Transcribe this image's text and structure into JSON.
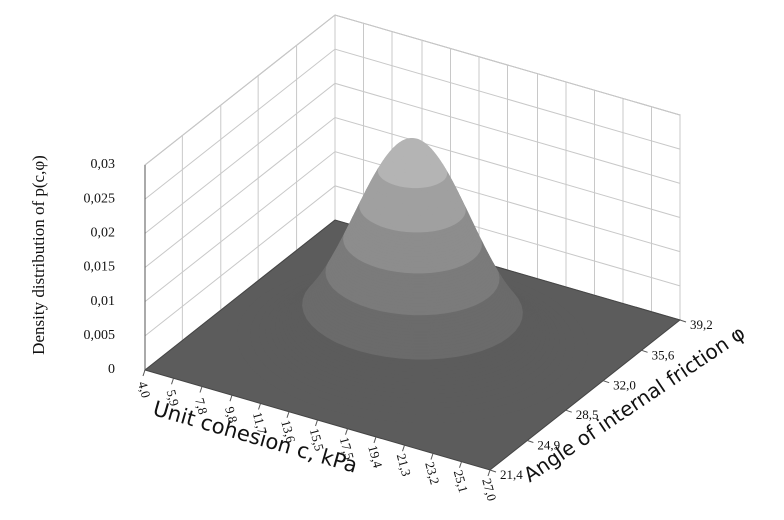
{
  "chart_data": {
    "type": "surface",
    "xlabel": "Unit cohesion c, kPa",
    "ylabel": "Angle of internal friction φ",
    "zlabel": "Density distribution of p(c,φ)",
    "xlim": [
      4.0,
      27.0
    ],
    "xticks": [
      {
        "value": 4.0,
        "label": "4,0"
      },
      {
        "value": 5.9,
        "label": "5,9"
      },
      {
        "value": 7.8,
        "label": "7,8"
      },
      {
        "value": 9.8,
        "label": "9,8"
      },
      {
        "value": 11.7,
        "label": "11,7"
      },
      {
        "value": 13.6,
        "label": "13,6"
      },
      {
        "value": 15.5,
        "label": "15,5"
      },
      {
        "value": 17.5,
        "label": "17,5"
      },
      {
        "value": 19.4,
        "label": "19,4"
      },
      {
        "value": 21.3,
        "label": "21,3"
      },
      {
        "value": 23.2,
        "label": "23,2"
      },
      {
        "value": 25.1,
        "label": "25,1"
      },
      {
        "value": 27.0,
        "label": "27,0"
      }
    ],
    "ylim": [
      21.4,
      39.2
    ],
    "yticks": [
      {
        "value": 21.4,
        "label": "21,4"
      },
      {
        "value": 24.9,
        "label": "24,9"
      },
      {
        "value": 28.5,
        "label": "28,5"
      },
      {
        "value": 32.0,
        "label": "32,0"
      },
      {
        "value": 35.6,
        "label": "35,6"
      },
      {
        "value": 39.2,
        "label": "39,2"
      }
    ],
    "zlim": [
      0,
      0.03
    ],
    "zticks": [
      0,
      {
        "value": 0.005,
        "label": "0,005"
      },
      {
        "value": 0.01,
        "label": "0,01"
      },
      {
        "value": 0.015,
        "label": "0,015"
      },
      {
        "value": 0.02,
        "label": "0,02"
      },
      {
        "value": 0.025,
        "label": "0,025"
      },
      {
        "value": 0.03,
        "label": "0,03"
      }
    ],
    "band_colors": [
      "#5c5c5c",
      "#6b6b6b",
      "#7b7b7b",
      "#8d8d8d",
      "#a0a0a0",
      "#b4b4b4"
    ],
    "floor_color": "#5c5c5c",
    "grid": true
  }
}
